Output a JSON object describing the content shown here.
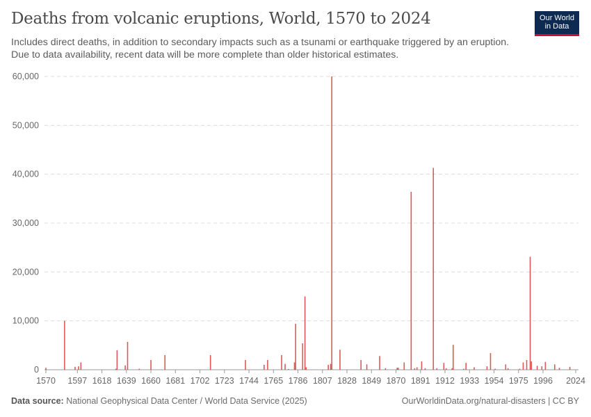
{
  "title": "Deaths from volcanic eruptions, World, 1570 to 2024",
  "subtitle": "Includes direct deaths, in addition to secondary impacts such as a tsunami or earthquake triggered by an eruption. Due to data availability, recent data will be more complete than older historical estimates.",
  "logo": {
    "line1": "Our World",
    "line2": "in Data"
  },
  "footer": {
    "source_label": "Data source:",
    "source": "National Geophysical Data Center / World Data Service (2025)",
    "link": "OurWorldinData.org/natural-disasters | CC BY"
  },
  "chart_data": {
    "type": "bar",
    "xlim": [
      1570,
      2024
    ],
    "ylim": [
      0,
      60000
    ],
    "xticks": [
      1570,
      1597,
      1618,
      1639,
      1660,
      1681,
      1702,
      1723,
      1744,
      1765,
      1786,
      1807,
      1828,
      1849,
      1870,
      1891,
      1912,
      1933,
      1954,
      1975,
      1996,
      2024
    ],
    "yticks": [
      0,
      10000,
      20000,
      30000,
      40000,
      50000,
      60000
    ],
    "ytick_labels": [
      "0",
      "10,000",
      "20,000",
      "30,000",
      "40,000",
      "50,000",
      "60,000"
    ],
    "grid": "horizontal-dashed",
    "color": "#d73c3c",
    "x": [
      1570,
      1586,
      1595,
      1598,
      1600,
      1630,
      1631,
      1638,
      1640,
      1650,
      1660,
      1672,
      1711,
      1741,
      1757,
      1760,
      1772,
      1775,
      1778,
      1783,
      1784,
      1790,
      1792,
      1793,
      1812,
      1814,
      1815,
      1822,
      1840,
      1845,
      1856,
      1861,
      1871,
      1872,
      1877,
      1883,
      1886,
      1888,
      1892,
      1895,
      1902,
      1905,
      1911,
      1913,
      1918,
      1919,
      1928,
      1930,
      1937,
      1948,
      1951,
      1955,
      1964,
      1966,
      1976,
      1979,
      1982,
      1985,
      1986,
      1991,
      1995,
      1998,
      2006,
      2010,
      2019
    ],
    "values": [
      400,
      10000,
      600,
      700,
      1500,
      200,
      4000,
      900,
      5700,
      200,
      2000,
      3000,
      3000,
      2000,
      1000,
      2000,
      3000,
      1200,
      150,
      1500,
      9400,
      5400,
      15000,
      500,
      1000,
      1200,
      60000,
      4100,
      2000,
      1100,
      2800,
      300,
      400,
      400,
      1500,
      36400,
      300,
      500,
      1700,
      300,
      41300,
      300,
      1400,
      300,
      300,
      5100,
      200,
      1400,
      500,
      700,
      3400,
      200,
      1100,
      300,
      200,
      1500,
      2000,
      23100,
      1700,
      800,
      700,
      1600,
      1100,
      400,
      600
    ]
  }
}
